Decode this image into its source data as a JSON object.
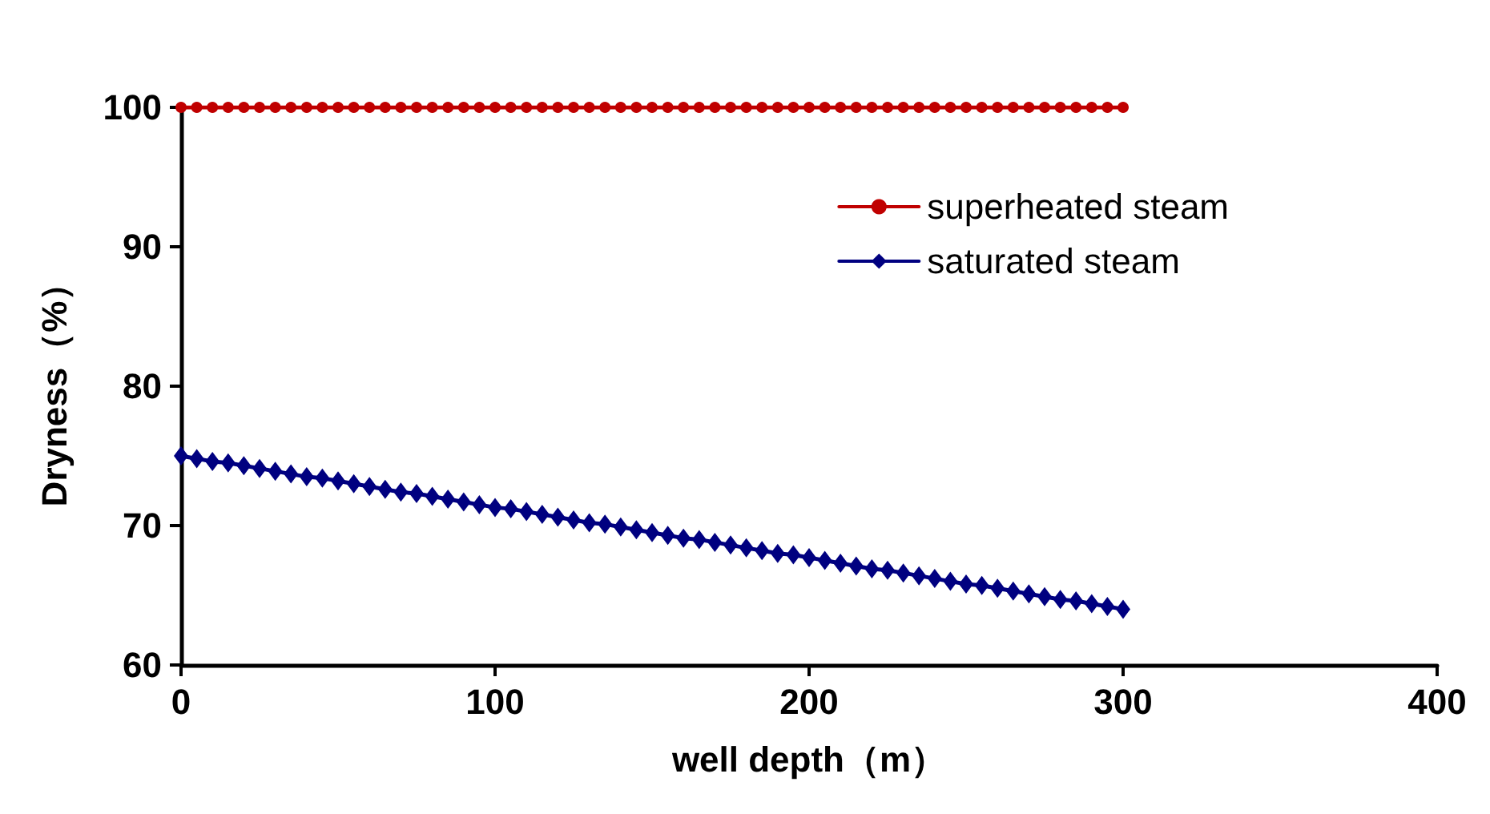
{
  "chart_data": {
    "type": "line",
    "xlabel": "well depth（m）",
    "ylabel": "Dryness（%）",
    "x": [
      0,
      5,
      10,
      15,
      20,
      25,
      30,
      35,
      40,
      45,
      50,
      55,
      60,
      65,
      70,
      75,
      80,
      85,
      90,
      95,
      100,
      105,
      110,
      115,
      120,
      125,
      130,
      135,
      140,
      145,
      150,
      155,
      160,
      165,
      170,
      175,
      180,
      185,
      190,
      195,
      200,
      205,
      210,
      215,
      220,
      225,
      230,
      235,
      240,
      245,
      250,
      255,
      260,
      265,
      270,
      275,
      280,
      285,
      290,
      295,
      300
    ],
    "series": [
      {
        "name": "superheated steam",
        "color": "#c00000",
        "marker": "circle",
        "values": [
          100,
          100,
          100,
          100,
          100,
          100,
          100,
          100,
          100,
          100,
          100,
          100,
          100,
          100,
          100,
          100,
          100,
          100,
          100,
          100,
          100,
          100,
          100,
          100,
          100,
          100,
          100,
          100,
          100,
          100,
          100,
          100,
          100,
          100,
          100,
          100,
          100,
          100,
          100,
          100,
          100,
          100,
          100,
          100,
          100,
          100,
          100,
          100,
          100,
          100,
          100,
          100,
          100,
          100,
          100,
          100,
          100,
          100,
          100,
          100,
          100
        ]
      },
      {
        "name": "saturated steam",
        "color": "#000080",
        "marker": "diamond",
        "values": [
          75.0,
          74.8,
          74.6,
          74.5,
          74.3,
          74.1,
          73.9,
          73.7,
          73.5,
          73.4,
          73.2,
          73.0,
          72.8,
          72.6,
          72.4,
          72.3,
          72.1,
          71.9,
          71.7,
          71.5,
          71.3,
          71.2,
          71.0,
          70.8,
          70.6,
          70.4,
          70.2,
          70.1,
          69.9,
          69.7,
          69.5,
          69.3,
          69.1,
          69.0,
          68.8,
          68.6,
          68.4,
          68.2,
          68.0,
          67.9,
          67.7,
          67.5,
          67.3,
          67.1,
          66.9,
          66.8,
          66.6,
          66.4,
          66.2,
          66.0,
          65.8,
          65.7,
          65.5,
          65.3,
          65.1,
          64.9,
          64.7,
          64.6,
          64.4,
          64.2,
          64.0
        ]
      }
    ],
    "xlim": [
      0,
      400
    ],
    "xticks": [
      0,
      100,
      200,
      300,
      400
    ],
    "ylim": [
      60,
      100
    ],
    "yticks": [
      60,
      70,
      80,
      90,
      100
    ],
    "grid": false,
    "legend": "top right",
    "line_style": "solid"
  }
}
